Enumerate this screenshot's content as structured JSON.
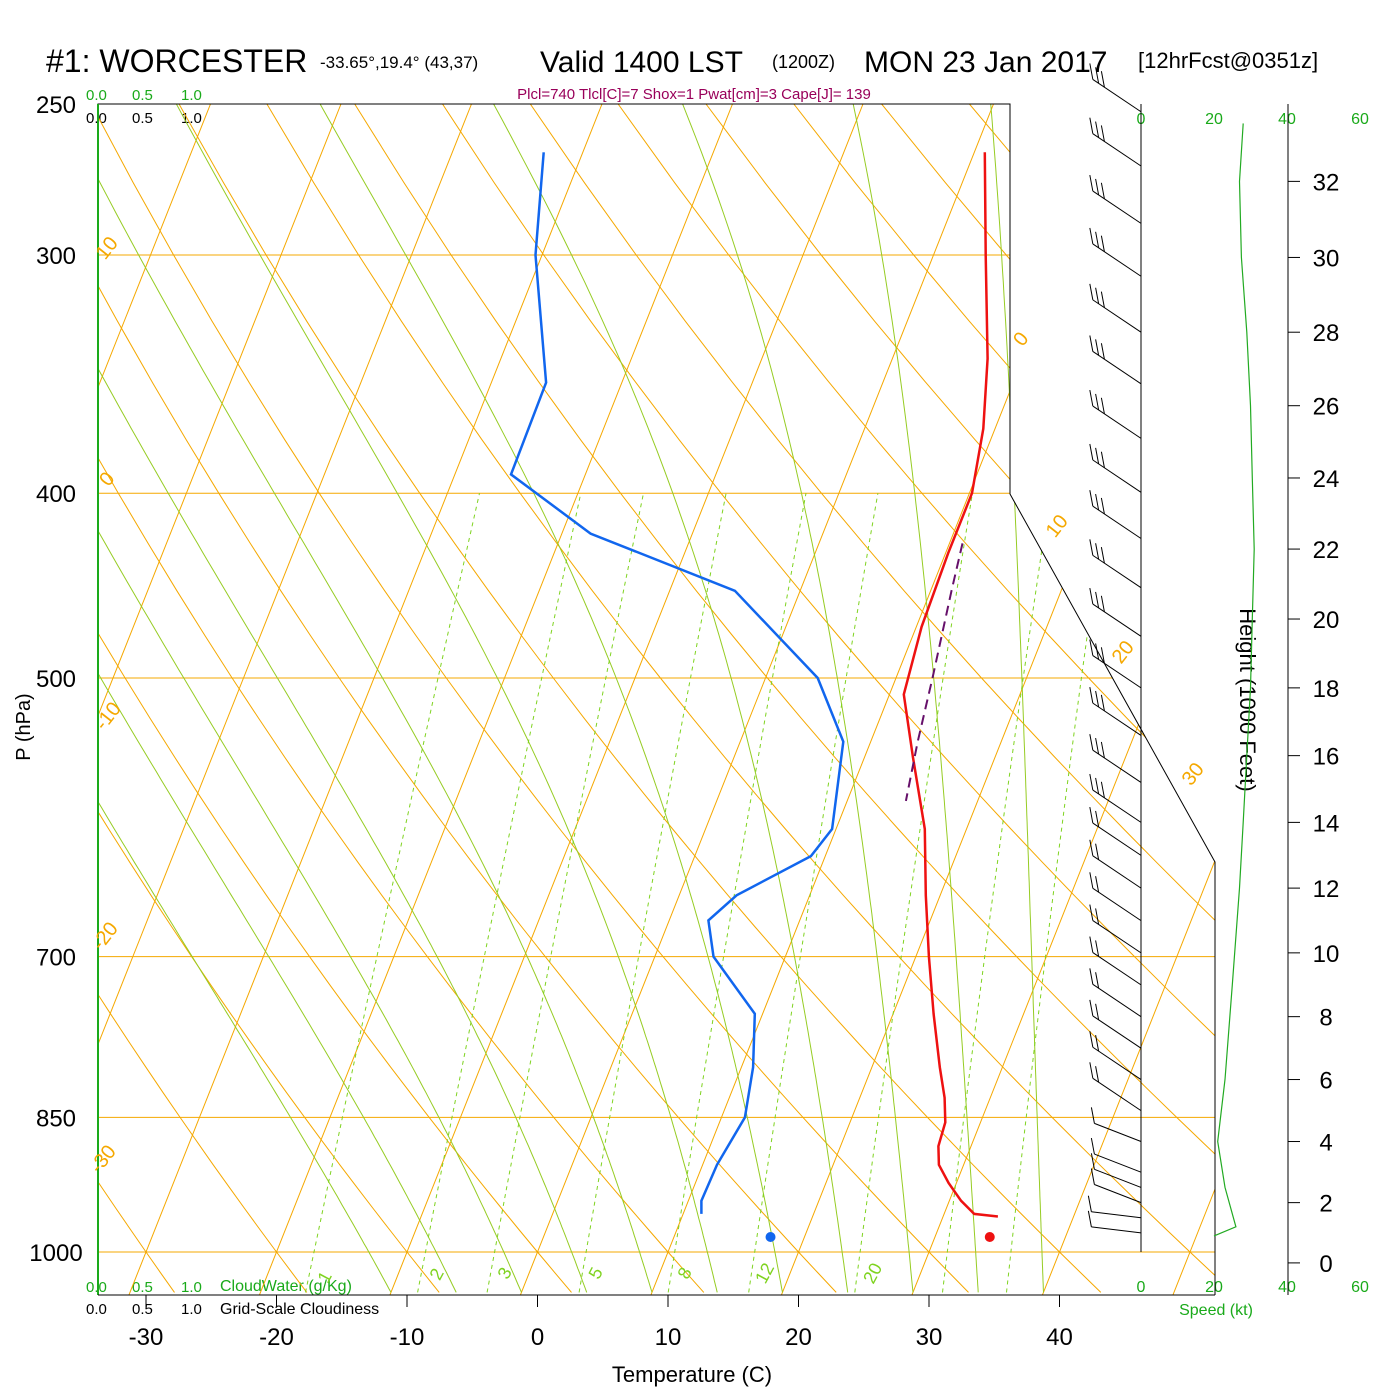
{
  "title": {
    "station": "#1: WORCESTER",
    "coords": "-33.65°,19.4° (43,37)",
    "valid": "Valid 1400 LST",
    "zulu": "(1200Z)",
    "date": "MON 23 Jan 2017",
    "forecast": "[12hrFcst@0351z]"
  },
  "params_line": "Plcl=740 Tlcl[C]=7 Shox=1 Pwat[cm]=3 Cape[J]= 139",
  "cloud_scale": {
    "top_green": [
      "0.0",
      "0.5",
      "1.0"
    ],
    "top_black": [
      "0.0",
      "0.5",
      "1.0"
    ],
    "bottom_green": [
      "0.0",
      "0.5",
      "1.0"
    ],
    "bottom_black": [
      "0.0",
      "0.5",
      "1.0"
    ],
    "cloudwater_label": "CloudWater (g/Kg)",
    "cloudiness_label": "Grid-Scale Cloudiness"
  },
  "wind_scale": {
    "ticks": [
      "0",
      "20",
      "40",
      "60"
    ],
    "label": "Speed (kt)"
  },
  "colors": {
    "isotherm": "#f5a800",
    "mixing_ratio": "#7fd320",
    "adiabat": "#96cc23",
    "temperature": "#ee1111",
    "dewpoint": "#1166ee",
    "parcel": "#66106a",
    "wind_speed": "#22aa22",
    "label_green": "#1aaa1a",
    "params": "#99005a"
  },
  "chart_data": {
    "type": "skew-t",
    "xlabel": "Temperature (C)",
    "ylabel": "P (hPa)",
    "y2label": "Height (1000 Feet)",
    "x_ticks": [
      "-30",
      "-20",
      "-10",
      "0",
      "10",
      "20",
      "30",
      "40"
    ],
    "pressure_ticks": [
      "250",
      "300",
      "400",
      "500",
      "700",
      "850",
      "1000"
    ],
    "height_ticks": [
      "0",
      "2",
      "4",
      "6",
      "8",
      "10",
      "12",
      "14",
      "16",
      "18",
      "20",
      "22",
      "24",
      "26",
      "28",
      "30",
      "32"
    ],
    "isotherm_labels": [
      "10",
      "0",
      "-10",
      "-20",
      "-30",
      "0",
      "10",
      "20",
      "30"
    ],
    "mixing_ratio_labels": [
      "1",
      "2",
      "3",
      "5",
      "8",
      "12",
      "20"
    ],
    "temperature": [
      [
        958,
        34.2
      ],
      [
        955,
        32.3
      ],
      [
        940,
        30.9
      ],
      [
        920,
        29.4
      ],
      [
        900,
        28.1
      ],
      [
        880,
        27.5
      ],
      [
        855,
        27.3
      ],
      [
        830,
        26.5
      ],
      [
        800,
        25.2
      ],
      [
        750,
        23.1
      ],
      [
        700,
        21.0
      ],
      [
        650,
        18.9
      ],
      [
        600,
        16.8
      ],
      [
        550,
        13.7
      ],
      [
        510,
        11.1
      ],
      [
        470,
        10.4
      ],
      [
        430,
        10.2
      ],
      [
        400,
        10.2
      ],
      [
        370,
        9.1
      ],
      [
        340,
        7.3
      ],
      [
        300,
        4.0
      ],
      [
        265,
        0.8
      ]
    ],
    "dewpoint": [
      [
        955,
        11.4
      ],
      [
        940,
        11.0
      ],
      [
        900,
        11.1
      ],
      [
        850,
        11.8
      ],
      [
        800,
        10.9
      ],
      [
        750,
        9.4
      ],
      [
        700,
        4.5
      ],
      [
        670,
        3.0
      ],
      [
        650,
        4.4
      ],
      [
        620,
        8.9
      ],
      [
        600,
        9.7
      ],
      [
        540,
        7.9
      ],
      [
        500,
        4.0
      ],
      [
        450,
        -5.0
      ],
      [
        420,
        -17.8
      ],
      [
        391,
        -25.7
      ],
      [
        350,
        -25.8
      ],
      [
        300,
        -30.5
      ],
      [
        265,
        -33.0
      ]
    ],
    "parcel": [
      [
        425,
        11.0
      ],
      [
        450,
        11.6
      ],
      [
        500,
        12.8
      ],
      [
        540,
        13.6
      ],
      [
        580,
        14.5
      ]
    ],
    "surface_temperature": 34.2,
    "surface_dewpoint": 17.4,
    "wind_speed_profile": [
      [
        0.9,
        0
      ],
      [
        1.2,
        6
      ],
      [
        2.5,
        3
      ],
      [
        4.0,
        1
      ],
      [
        6.0,
        3
      ],
      [
        9.0,
        5
      ],
      [
        12.0,
        7
      ],
      [
        14.0,
        8
      ],
      [
        16.0,
        9
      ],
      [
        18.0,
        10
      ],
      [
        20.0,
        10.5
      ],
      [
        22.0,
        11
      ],
      [
        24.0,
        10.5
      ],
      [
        26.0,
        10
      ],
      [
        28.0,
        9
      ],
      [
        30.0,
        7.5
      ],
      [
        32.0,
        7
      ],
      [
        33.5,
        8
      ]
    ],
    "wind_barbs_height_kft": [
      33.8,
      32.4,
      30.9,
      29.5,
      28.0,
      26.6,
      25.1,
      23.6,
      22.3,
      20.9,
      19.5,
      18.0,
      16.6,
      15.2,
      14.0,
      13.0,
      12.0,
      11.0,
      10.0,
      9.0,
      8.0,
      7.0,
      6.0,
      5.0,
      4.0,
      3.0,
      2.5,
      2.0,
      1.5,
      1.0
    ],
    "grid": true
  }
}
